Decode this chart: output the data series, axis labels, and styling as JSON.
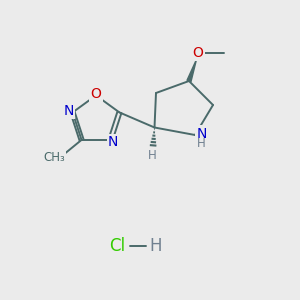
{
  "bg_color": "#ebebeb",
  "bond_color": "#4a6a6a",
  "bond_width": 1.4,
  "atom_colors": {
    "N": "#0000cc",
    "O": "#cc0000",
    "C": "#4a6a6a",
    "H": "#708090",
    "Cl": "#33cc00"
  },
  "font_size_atom": 10,
  "font_size_small": 8.5,
  "font_size_hcl": 12,
  "wedge_color": "#4a6a6a"
}
